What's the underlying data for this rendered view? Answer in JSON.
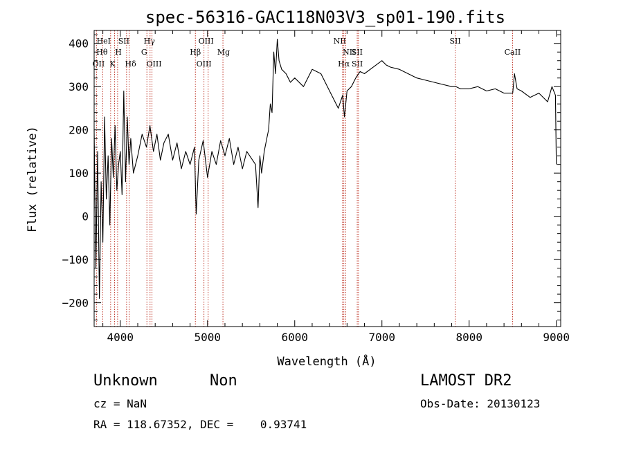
{
  "title": "spec-56316-GAC118N03V3_sp01-190.fits",
  "chart_data": {
    "type": "line",
    "xlabel": "Wavelength (Å)",
    "ylabel": "Flux (relative)",
    "xlim": [
      3700,
      9050
    ],
    "ylim": [
      -255,
      430
    ],
    "x_ticks": [
      4000,
      5000,
      6000,
      7000,
      8000,
      9000
    ],
    "y_ticks": [
      -200,
      -100,
      0,
      100,
      200,
      300,
      400
    ],
    "grid": false,
    "series": [
      {
        "x": [
          3700,
          3720,
          3740,
          3760,
          3780,
          3800,
          3820,
          3840,
          3860,
          3880,
          3900,
          3920,
          3940,
          3960,
          3980,
          4000,
          4020,
          4040,
          4060,
          4080,
          4100,
          4120,
          4150,
          4200,
          4250,
          4300,
          4340,
          4380,
          4420,
          4460,
          4500,
          4550,
          4600,
          4650,
          4700,
          4750,
          4800,
          4850,
          4870,
          4900,
          4950,
          5000,
          5050,
          5100,
          5150,
          5200,
          5250,
          5300,
          5350,
          5400,
          5450,
          5500,
          5550,
          5580,
          5600,
          5620,
          5650,
          5680,
          5700,
          5720,
          5740,
          5760,
          5780,
          5800,
          5820,
          5850,
          5900,
          5950,
          6000,
          6100,
          6200,
          6300,
          6400,
          6450,
          6500,
          6550,
          6570,
          6600,
          6650,
          6700,
          6750,
          6800,
          6900,
          7000,
          7050,
          7100,
          7200,
          7300,
          7400,
          7500,
          7600,
          7700,
          7800,
          7850,
          7900,
          8000,
          8100,
          8200,
          8300,
          8400,
          8500,
          8520,
          8550,
          8600,
          8700,
          8800,
          8900,
          8950,
          8990,
          9000
        ],
        "y": [
          200,
          -120,
          150,
          -190,
          80,
          -60,
          230,
          40,
          140,
          -20,
          180,
          90,
          210,
          60,
          120,
          150,
          50,
          290,
          80,
          230,
          120,
          180,
          100,
          140,
          190,
          160,
          210,
          150,
          190,
          130,
          170,
          190,
          130,
          170,
          110,
          150,
          120,
          160,
          5,
          130,
          175,
          90,
          150,
          120,
          175,
          140,
          180,
          120,
          160,
          110,
          150,
          135,
          120,
          20,
          140,
          100,
          150,
          180,
          200,
          260,
          240,
          380,
          330,
          410,
          360,
          340,
          330,
          310,
          320,
          300,
          340,
          330,
          290,
          270,
          250,
          280,
          230,
          290,
          300,
          320,
          335,
          330,
          345,
          360,
          350,
          345,
          340,
          330,
          320,
          315,
          310,
          305,
          300,
          300,
          295,
          295,
          300,
          290,
          295,
          285,
          285,
          330,
          295,
          290,
          275,
          285,
          265,
          300,
          280,
          120
        ]
      }
    ],
    "lines": [
      {
        "name": "OII",
        "x": 3727
      },
      {
        "name": "Hθ",
        "x": 3798
      },
      {
        "name": "HeI",
        "x": 3889
      },
      {
        "name": "K",
        "x": 3934
      },
      {
        "name": "H",
        "x": 3969
      },
      {
        "name": "SII",
        "x": 4072
      },
      {
        "name": "Hδ",
        "x": 4102
      },
      {
        "name": "G",
        "x": 4305
      },
      {
        "name": "Hγ",
        "x": 4341
      },
      {
        "name": "OIII",
        "x": 4363
      },
      {
        "name": "Hβ",
        "x": 4861
      },
      {
        "name": "OIII",
        "x": 4959
      },
      {
        "name": "OIII",
        "x": 5007
      },
      {
        "name": "Mg",
        "x": 5177
      },
      {
        "name": "NII",
        "x": 6548
      },
      {
        "name": "Hα",
        "x": 6563
      },
      {
        "name": "NII",
        "x": 6584
      },
      {
        "name": "SII",
        "x": 6717
      },
      {
        "name": "SII",
        "x": 6731
      },
      {
        "name": "SII",
        "x": 7840
      },
      {
        "name": "CaII",
        "x": 8498
      }
    ]
  },
  "info": {
    "object_class": "Unknown",
    "subclass": "Non",
    "cz": "cz = NaN",
    "coords": "RA = 118.67352, DEC =    0.93741",
    "survey": "LAMOST DR2",
    "obs_date": "Obs-Date: 20130123"
  }
}
